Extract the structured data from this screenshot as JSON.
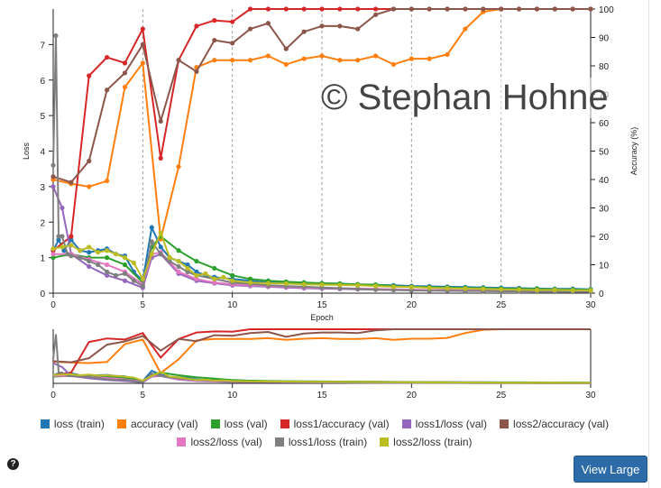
{
  "watermark": "© Stephan Hohne",
  "button_label": "View Large",
  "help_glyph": "?",
  "chart_data": {
    "type": "line",
    "xlabel": "Epoch",
    "ylabel_left": "Loss",
    "ylabel_right": "Accuracy (%)",
    "xlim": [
      0,
      30
    ],
    "ylim_left": [
      0,
      8
    ],
    "ylim_right": [
      0,
      100
    ],
    "x_ticks": [
      0,
      5,
      10,
      15,
      20,
      25,
      30
    ],
    "y_ticks_left": [
      0,
      1,
      2,
      3,
      4,
      5,
      6,
      7
    ],
    "y_ticks_right": [
      0,
      10,
      20,
      30,
      40,
      50,
      60,
      70,
      80,
      90,
      100
    ],
    "vertical_gridlines": true,
    "legend_position": "bottom",
    "overview_chart": true,
    "series": [
      {
        "name": "loss (train)",
        "color": "#1f77b4",
        "axis": "left",
        "x": [
          0,
          0.3,
          0.6,
          1,
          1.5,
          2,
          2.5,
          3,
          3.5,
          4,
          4.5,
          5,
          5.5,
          6,
          6.5,
          7,
          7.5,
          8,
          8.5,
          9,
          10,
          11,
          12,
          13,
          14,
          15,
          16,
          17,
          18,
          19,
          20,
          21,
          22,
          23,
          24,
          25,
          26,
          27,
          28,
          29,
          30
        ],
        "y": [
          1.2,
          1.5,
          1.2,
          1.5,
          1.2,
          1.15,
          1.2,
          1.25,
          1.1,
          1.05,
          0.6,
          0.35,
          1.85,
          1.3,
          1.0,
          0.9,
          0.8,
          0.6,
          0.5,
          0.45,
          0.4,
          0.35,
          0.3,
          0.28,
          0.27,
          0.26,
          0.25,
          0.24,
          0.23,
          0.22,
          0.2,
          0.19,
          0.18,
          0.17,
          0.16,
          0.15,
          0.14,
          0.13,
          0.12,
          0.12,
          0.11
        ]
      },
      {
        "name": "accuracy (val)",
        "color": "#ff7f0e",
        "axis": "right",
        "x": [
          0,
          1,
          2,
          3,
          4,
          5,
          6,
          7,
          8,
          9,
          10,
          11,
          12,
          13,
          14,
          15,
          16,
          17,
          18,
          19,
          20,
          21,
          22,
          23,
          24,
          25,
          26,
          27,
          28,
          29,
          30
        ],
        "y": [
          40,
          38.5,
          37.5,
          39.5,
          72.5,
          81,
          19,
          44.5,
          79.5,
          82,
          82,
          82,
          83.5,
          80.5,
          82.5,
          83.5,
          82,
          82,
          83.5,
          80.5,
          82.5,
          82.5,
          84,
          93,
          99,
          100,
          100,
          100,
          100,
          100,
          100
        ]
      },
      {
        "name": "loss (val)",
        "color": "#2ca02c",
        "axis": "left",
        "x": [
          0,
          1,
          2,
          3,
          4,
          5,
          5.5,
          6,
          7,
          8,
          9,
          10,
          11,
          12,
          13,
          14,
          15,
          16,
          17,
          18,
          19,
          20,
          21,
          22,
          23,
          24,
          25,
          26,
          27,
          28,
          29,
          30
        ],
        "y": [
          1.0,
          1.1,
          1.0,
          1.0,
          0.8,
          0.3,
          1.3,
          1.6,
          1.2,
          0.9,
          0.7,
          0.5,
          0.4,
          0.35,
          0.32,
          0.3,
          0.28,
          0.27,
          0.25,
          0.24,
          0.2,
          0.18,
          0.17,
          0.16,
          0.15,
          0.14,
          0.13,
          0.12,
          0.12,
          0.11,
          0.1,
          0.1
        ]
      },
      {
        "name": "loss1/accuracy (val)",
        "color": "#d62728",
        "axis": "right",
        "x": [
          0,
          1,
          2,
          3,
          4,
          5,
          6,
          7,
          8,
          9,
          10,
          11,
          12,
          13,
          14,
          15,
          16,
          17,
          18,
          19,
          20,
          21,
          22,
          23,
          24,
          25,
          26,
          27,
          28,
          29,
          30
        ],
        "y": [
          15,
          20,
          76.5,
          83,
          81,
          93,
          47.5,
          82,
          94,
          96,
          95.5,
          100,
          100,
          100,
          100,
          100,
          100,
          100,
          100,
          100,
          100,
          100,
          100,
          100,
          100,
          100,
          100,
          100,
          100,
          100,
          100
        ]
      },
      {
        "name": "loss1/loss (val)",
        "color": "#9467bd",
        "axis": "left",
        "x": [
          0,
          0.5,
          1,
          2,
          3,
          4,
          5,
          5.5,
          6,
          7,
          8,
          9,
          10,
          11,
          12,
          13,
          14,
          15,
          16,
          17,
          18,
          19,
          20,
          21,
          22,
          23,
          24,
          25,
          26,
          27,
          28,
          29,
          30
        ],
        "y": [
          3.0,
          2.4,
          1.1,
          0.75,
          0.5,
          0.35,
          0.15,
          1.0,
          1.1,
          0.55,
          0.35,
          0.28,
          0.22,
          0.2,
          0.18,
          0.16,
          0.14,
          0.13,
          0.12,
          0.11,
          0.1,
          0.09,
          0.08,
          0.08,
          0.07,
          0.07,
          0.06,
          0.06,
          0.05,
          0.05,
          0.05,
          0.04,
          0.04
        ]
      },
      {
        "name": "loss2/accuracy (val)",
        "color": "#8c564b",
        "axis": "right",
        "x": [
          0,
          1,
          2,
          3,
          4,
          5,
          6,
          7,
          8,
          9,
          10,
          11,
          12,
          13,
          14,
          15,
          16,
          17,
          18,
          19,
          20,
          21,
          22,
          23,
          24,
          25,
          26,
          27,
          28,
          29,
          30
        ],
        "y": [
          41,
          39,
          46.5,
          71.5,
          77.5,
          87.5,
          60.5,
          82,
          78,
          89,
          88,
          93,
          95,
          86,
          92,
          94,
          94,
          93,
          98,
          100,
          100,
          100,
          100,
          100,
          100,
          100,
          100,
          100,
          100,
          100,
          100
        ]
      },
      {
        "name": "loss2/loss (val)",
        "color": "#e377c2",
        "axis": "left",
        "x": [
          0,
          1,
          2,
          3,
          4,
          5,
          5.5,
          6,
          7,
          8,
          9,
          10,
          11,
          12,
          13,
          14,
          15,
          16,
          17,
          18,
          19,
          20,
          21,
          22,
          23,
          24,
          25,
          26,
          27,
          28,
          29,
          30
        ],
        "y": [
          1.1,
          1.1,
          0.95,
          0.8,
          0.6,
          0.25,
          1.1,
          1.15,
          0.6,
          0.4,
          0.3,
          0.25,
          0.22,
          0.2,
          0.18,
          0.16,
          0.15,
          0.14,
          0.13,
          0.12,
          0.11,
          0.1,
          0.09,
          0.09,
          0.08,
          0.08,
          0.07,
          0.07,
          0.06,
          0.06,
          0.06,
          0.05
        ]
      },
      {
        "name": "loss1/loss (train)",
        "color": "#7f7f7f",
        "axis": "left",
        "x": [
          0,
          0.15,
          0.3,
          0.5,
          0.8,
          1,
          1.5,
          2,
          2.5,
          3,
          3.5,
          4,
          4.5,
          5,
          5.5,
          6,
          6.5,
          7,
          7.5,
          8,
          9,
          10,
          11,
          12,
          13,
          14,
          15,
          16,
          17,
          18,
          19,
          20,
          21,
          22,
          23,
          24,
          25,
          26,
          27,
          28,
          29,
          30
        ],
        "y": [
          3.6,
          7.25,
          1.6,
          1.6,
          1.1,
          1.05,
          1.0,
          0.9,
          0.8,
          0.6,
          0.5,
          0.55,
          0.35,
          0.2,
          1.45,
          1.1,
          0.9,
          0.75,
          0.6,
          0.5,
          0.4,
          0.3,
          0.26,
          0.22,
          0.2,
          0.18,
          0.16,
          0.14,
          0.12,
          0.1,
          0.09,
          0.08,
          0.07,
          0.07,
          0.06,
          0.06,
          0.05,
          0.05,
          0.04,
          0.04,
          0.04,
          0.04
        ]
      },
      {
        "name": "loss2/loss (train)",
        "color": "#bcbd22",
        "axis": "left",
        "x": [
          0,
          0.5,
          1,
          1.5,
          2,
          2.5,
          3,
          3.5,
          4,
          4.5,
          5,
          5.5,
          6,
          6.5,
          7,
          7.5,
          8,
          8.5,
          9,
          9.5,
          10,
          11,
          12,
          13,
          14,
          15,
          16,
          17,
          18,
          19,
          20,
          21,
          22,
          23,
          24,
          25,
          26,
          27,
          28,
          29,
          30
        ],
        "y": [
          1.25,
          1.3,
          1.35,
          1.2,
          1.3,
          1.15,
          1.2,
          1.1,
          1.0,
          0.85,
          0.4,
          1.1,
          1.7,
          1.0,
          0.9,
          0.7,
          0.5,
          0.55,
          0.4,
          0.45,
          0.35,
          0.3,
          0.28,
          0.27,
          0.25,
          0.24,
          0.23,
          0.22,
          0.2,
          0.18,
          0.17,
          0.15,
          0.14,
          0.13,
          0.12,
          0.11,
          0.1,
          0.09,
          0.09,
          0.08,
          0.08
        ]
      }
    ]
  }
}
